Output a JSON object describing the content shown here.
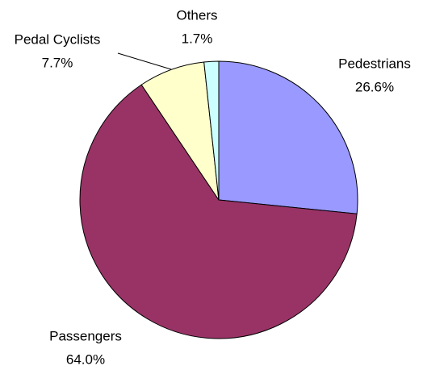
{
  "chart_data": {
    "type": "pie",
    "categories": [
      "Pedestrians",
      "Passengers",
      "Pedal Cyclists",
      "Others"
    ],
    "values": [
      26.6,
      64.0,
      7.7,
      1.7
    ],
    "value_labels": [
      "26.6%",
      "64.0%",
      "7.7%",
      "1.7%"
    ],
    "colors": [
      "#9999ff",
      "#993366",
      "#ffffcc",
      "#ccffff"
    ]
  }
}
